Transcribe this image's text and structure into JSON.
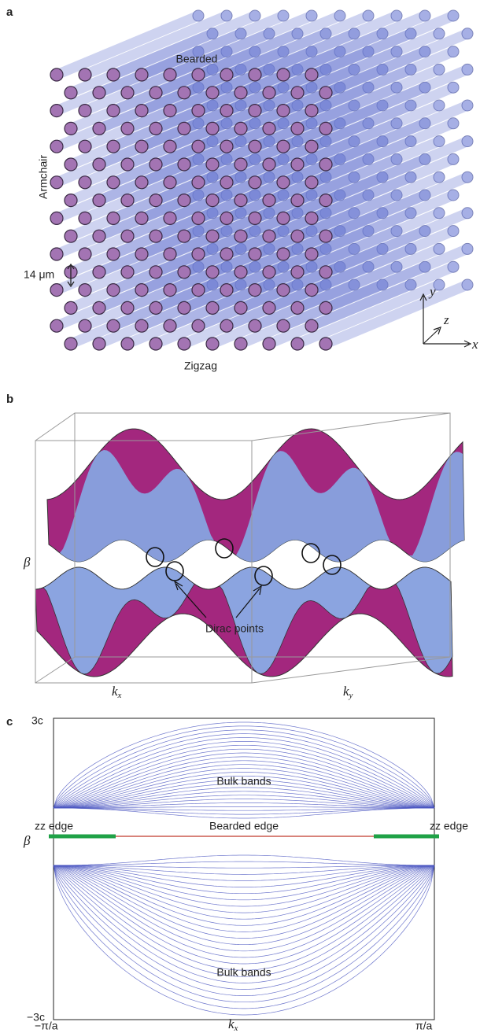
{
  "panel_a": {
    "label": "a",
    "top_edge": "Bearded",
    "side_edge": "Armchair",
    "scale": "14 μm",
    "bottom_edge": "Zigzag",
    "axes": {
      "x": "x",
      "y": "y",
      "z": "z"
    }
  },
  "panel_b": {
    "label": "b",
    "y_axis": "β",
    "annotation": "Dirac points",
    "x_axis_1": {
      "symbol": "k",
      "subscript": "x"
    },
    "x_axis_2": {
      "symbol": "k",
      "subscript": "y"
    }
  },
  "panel_c": {
    "label": "c",
    "y_axis": "β",
    "y_max": "3c",
    "y_min": "−3c",
    "x_min": "−π/a",
    "x_max": "π/a",
    "x_axis": {
      "symbol": "k",
      "subscript": "x"
    },
    "left_edge": "zz edge",
    "right_edge": "zz edge",
    "middle_edge": "Bearded edge",
    "upper_band": "Bulk bands",
    "lower_band": "Bulk bands"
  }
}
